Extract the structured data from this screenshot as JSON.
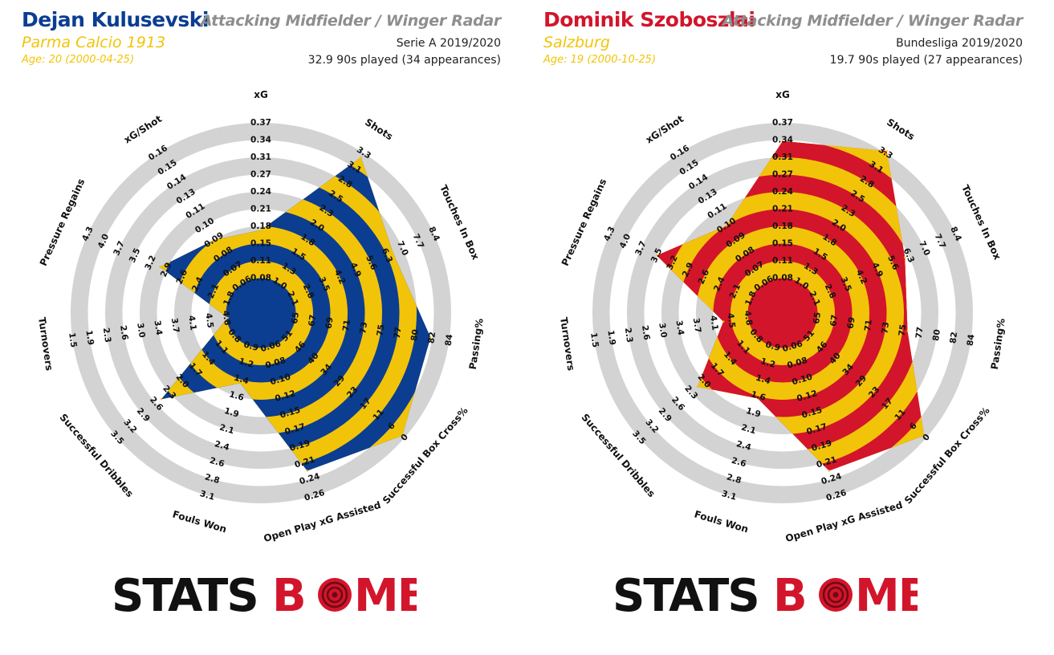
{
  "colors": {
    "ring_gray": "#d3d3d3",
    "stats_black": "#111111",
    "bomb_red": "#d2152b",
    "title_gray": "#8e8e8e"
  },
  "logo": {
    "part1": "STATS",
    "part2": "B",
    "part3": "MB"
  },
  "players": [
    {
      "name": "Dejan Kulusevski",
      "team": "Parma Calcio 1913",
      "age": "Age: 20 (2000-04-25)",
      "radar_title": "Attacking Midfielder / Winger Radar",
      "competition": "Serie A 2019/2020",
      "minutes": "32.9 90s played (34 appearances)",
      "primary_color": "#0b3d91",
      "secondary_color": "#f2c409"
    },
    {
      "name": "Dominik Szoboszlai",
      "team": "Salzburg",
      "age": "Age: 19 (2000-10-25)",
      "radar_title": "Attacking Midfielder / Winger Radar",
      "competition": "Bundesliga 2019/2020",
      "minutes": "19.7 90s played (27 appearances)",
      "primary_color": "#d2152b",
      "secondary_color": "#f2c409"
    }
  ],
  "chart_data": [
    {
      "type": "radar",
      "title": "Attacking Midfielder / Winger Radar",
      "player": "Dejan Kulusevski",
      "axes": [
        {
          "name": "xG",
          "ticks": [
            "0.08",
            "0.11",
            "0.15",
            "0.18",
            "0.21",
            "0.24",
            "0.27",
            "0.31",
            "0.34",
            "0.37"
          ]
        },
        {
          "name": "Shots",
          "ticks": [
            "1.0",
            "1.3",
            "1.5",
            "1.8",
            "2.0",
            "2.3",
            "2.5",
            "2.8",
            "3.1",
            "3.3"
          ]
        },
        {
          "name": "Touches In Box",
          "ticks": [
            "2.1",
            "2.8",
            "3.5",
            "4.2",
            "4.9",
            "5.6",
            "6.3",
            "7.0",
            "7.7",
            "8.4"
          ]
        },
        {
          "name": "Passing%",
          "ticks": [
            "65",
            "67",
            "69",
            "71",
            "73",
            "75",
            "77",
            "80",
            "82",
            "84"
          ]
        },
        {
          "name": "Successful Box Cross%",
          "ticks": [
            "51",
            "46",
            "40",
            "34",
            "29",
            "23",
            "17",
            "11",
            "6",
            "0"
          ]
        },
        {
          "name": "Open Play xG Assisted",
          "ticks": [
            "0.06",
            "0.08",
            "0.10",
            "0.12",
            "0.15",
            "0.17",
            "0.19",
            "0.21",
            "0.24",
            "0.26"
          ]
        },
        {
          "name": "Fouls Won",
          "ticks": [
            "0.9",
            "1.2",
            "1.4",
            "1.6",
            "1.9",
            "2.1",
            "2.4",
            "2.6",
            "2.8",
            "3.1"
          ]
        },
        {
          "name": "Successful Dribbles",
          "ticks": [
            "0.8",
            "1.1",
            "1.4",
            "1.7",
            "2.0",
            "2.3",
            "2.6",
            "2.9",
            "3.2",
            "3.5"
          ]
        },
        {
          "name": "Turnovers",
          "ticks": [
            "4.8",
            "4.5",
            "4.1",
            "3.7",
            "3.4",
            "3.0",
            "2.6",
            "2.3",
            "1.9",
            "1.5"
          ]
        },
        {
          "name": "Pressure Regains",
          "ticks": [
            "1.8",
            "2.1",
            "2.4",
            "2.6",
            "2.9",
            "3.2",
            "3.5",
            "3.7",
            "4.0",
            "4.3"
          ]
        },
        {
          "name": "xG/Shot",
          "ticks": [
            "0.06",
            "0.07",
            "0.08",
            "0.09",
            "0.10",
            "0.11",
            "0.13",
            "0.14",
            "0.15",
            "0.16"
          ]
        }
      ],
      "values": [
        0.16,
        3.0,
        6.1,
        80,
        6,
        0.21,
        1.4,
        2.3,
        4.8,
        2.9,
        0.09
      ],
      "range_min": [
        0.05,
        0.75,
        1.4,
        63,
        56,
        0.04,
        0.7,
        0.5,
        5.1,
        1.55,
        0.05
      ],
      "range_max": [
        0.37,
        3.3,
        8.4,
        84,
        0,
        0.26,
        3.1,
        3.5,
        1.5,
        4.3,
        0.16
      ]
    },
    {
      "type": "radar",
      "title": "Attacking Midfielder / Winger Radar",
      "player": "Dominik Szoboszlai",
      "axes": [
        {
          "name": "xG",
          "ticks": [
            "0.08",
            "0.11",
            "0.15",
            "0.18",
            "0.21",
            "0.24",
            "0.27",
            "0.31",
            "0.34",
            "0.37"
          ]
        },
        {
          "name": "Shots",
          "ticks": [
            "1.0",
            "1.3",
            "1.5",
            "1.8",
            "2.0",
            "2.3",
            "2.5",
            "2.8",
            "3.1",
            "3.3"
          ]
        },
        {
          "name": "Touches In Box",
          "ticks": [
            "2.1",
            "2.8",
            "3.5",
            "4.2",
            "4.9",
            "5.6",
            "6.3",
            "7.0",
            "7.7",
            "8.4"
          ]
        },
        {
          "name": "Passing%",
          "ticks": [
            "65",
            "67",
            "69",
            "71",
            "73",
            "75",
            "77",
            "80",
            "82",
            "84"
          ]
        },
        {
          "name": "Successful Box Cross%",
          "ticks": [
            "51",
            "46",
            "40",
            "34",
            "29",
            "23",
            "17",
            "11",
            "6",
            "0"
          ]
        },
        {
          "name": "Open Play xG Assisted",
          "ticks": [
            "0.06",
            "0.08",
            "0.10",
            "0.12",
            "0.15",
            "0.17",
            "0.19",
            "0.21",
            "0.24",
            "0.26"
          ]
        },
        {
          "name": "Fouls Won",
          "ticks": [
            "0.9",
            "1.2",
            "1.4",
            "1.6",
            "1.9",
            "2.1",
            "2.4",
            "2.6",
            "2.8",
            "3.1"
          ]
        },
        {
          "name": "Successful Dribbles",
          "ticks": [
            "0.8",
            "1.1",
            "1.4",
            "1.7",
            "2.0",
            "2.3",
            "2.6",
            "2.9",
            "3.2",
            "3.5"
          ]
        },
        {
          "name": "Turnovers",
          "ticks": [
            "4.8",
            "4.5",
            "4.1",
            "3.7",
            "3.4",
            "3.0",
            "2.6",
            "2.3",
            "1.9",
            "1.5"
          ]
        },
        {
          "name": "Pressure Regains",
          "ticks": [
            "1.8",
            "2.1",
            "2.4",
            "2.6",
            "2.9",
            "3.2",
            "3.5",
            "3.7",
            "4.0",
            "4.3"
          ]
        },
        {
          "name": "xG/Shot",
          "ticks": [
            "0.06",
            "0.07",
            "0.08",
            "0.09",
            "0.10",
            "0.11",
            "0.13",
            "0.14",
            "0.15",
            "0.16"
          ]
        }
      ],
      "values": [
        0.31,
        3.1,
        5.7,
        75,
        6,
        0.21,
        1.6,
        2.0,
        4.3,
        3.3,
        0.1
      ],
      "range_min": [
        0.05,
        0.75,
        1.4,
        63,
        56,
        0.04,
        0.7,
        0.5,
        5.1,
        1.55,
        0.05
      ],
      "range_max": [
        0.37,
        3.3,
        8.4,
        84,
        0,
        0.26,
        3.1,
        3.5,
        1.5,
        4.3,
        0.16
      ]
    }
  ]
}
